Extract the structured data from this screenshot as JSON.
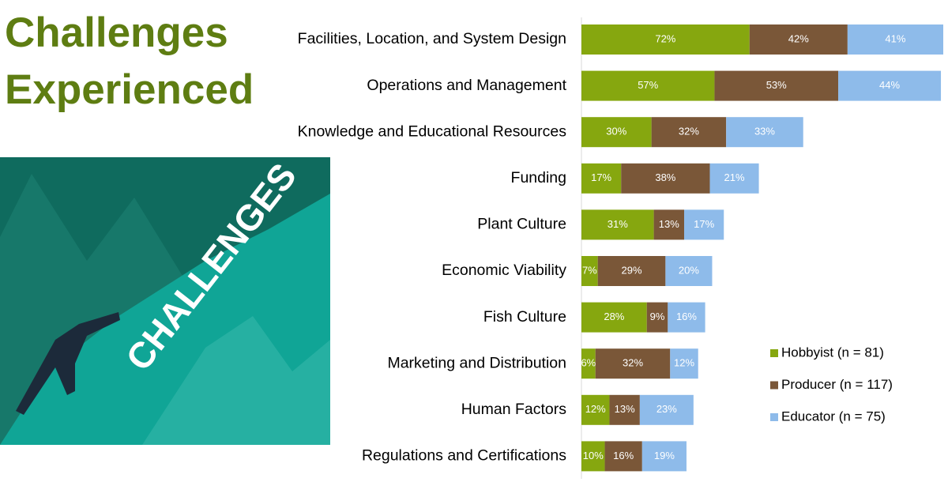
{
  "chart_data": {
    "type": "stacked-barh",
    "title": "Challenges Experienced",
    "image_text": "CHALLENGES",
    "categories": [
      "Facilities, Location, and System Design",
      "Operations and Management",
      "Knowledge and Educational Resources",
      "Funding",
      "Plant Culture",
      "Economic Viability",
      "Fish Culture",
      "Marketing and Distribution",
      "Human Factors",
      "Regulations and Certifications"
    ],
    "series": [
      {
        "name": "Hobbyist (n = 81)",
        "color": "#86a70f",
        "values": [
          72,
          57,
          30,
          17,
          31,
          7,
          28,
          6,
          12,
          10
        ],
        "value_labels": [
          "72%",
          "57%",
          "30%",
          "17%",
          "31%",
          "7%",
          "28%",
          "6%",
          "12%",
          "10%"
        ]
      },
      {
        "name": "Producer (n = 117)",
        "color": "#7a5738",
        "values": [
          42,
          53,
          32,
          38,
          13,
          29,
          9,
          32,
          13,
          16
        ],
        "value_labels": [
          "42%",
          "53%",
          "32%",
          "38%",
          "13%",
          "29%",
          "9%",
          "32%",
          "13%",
          "16%"
        ]
      },
      {
        "name": "Educator (n = 75)",
        "color": "#8ebbea",
        "values": [
          41,
          44,
          33,
          21,
          17,
          20,
          16,
          12,
          23,
          19
        ],
        "value_labels": [
          "41%",
          "44%",
          "33%",
          "21%",
          "17%",
          "20%",
          "16%",
          "12%",
          "23%",
          "19%"
        ]
      }
    ],
    "xlim": [
      0,
      155
    ],
    "legend": "lower right"
  }
}
